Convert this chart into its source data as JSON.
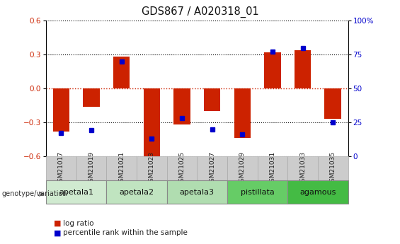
{
  "title": "GDS867 / A020318_01",
  "samples": [
    "GSM21017",
    "GSM21019",
    "GSM21021",
    "GSM21023",
    "GSM21025",
    "GSM21027",
    "GSM21029",
    "GSM21031",
    "GSM21033",
    "GSM21035"
  ],
  "log_ratio": [
    -0.38,
    -0.16,
    0.28,
    -0.62,
    -0.32,
    -0.2,
    -0.44,
    0.32,
    0.34,
    -0.27
  ],
  "percentile_rank": [
    17,
    19,
    70,
    13,
    28,
    20,
    16,
    77,
    80,
    25
  ],
  "groups": [
    {
      "name": "apetala1",
      "span": [
        0,
        2
      ],
      "color": "#d0ead0"
    },
    {
      "name": "apetala2",
      "span": [
        2,
        4
      ],
      "color": "#c0e4c0"
    },
    {
      "name": "apetala3",
      "span": [
        4,
        6
      ],
      "color": "#b0ddb0"
    },
    {
      "name": "pistillata",
      "span": [
        6,
        8
      ],
      "color": "#66cc66"
    },
    {
      "name": "agamous",
      "span": [
        8,
        10
      ],
      "color": "#44bb44"
    }
  ],
  "ylim": [
    -0.6,
    0.6
  ],
  "yticks_left": [
    -0.6,
    -0.3,
    0.0,
    0.3,
    0.6
  ],
  "yticks_right": [
    0,
    25,
    50,
    75,
    100
  ],
  "bar_color": "#cc2200",
  "dot_color": "#0000cc",
  "background_color": "#ffffff",
  "grid_color": "#000000",
  "zero_line_color": "#cc2200",
  "sample_box_color": "#cccccc",
  "sample_box_edge": "#aaaaaa"
}
